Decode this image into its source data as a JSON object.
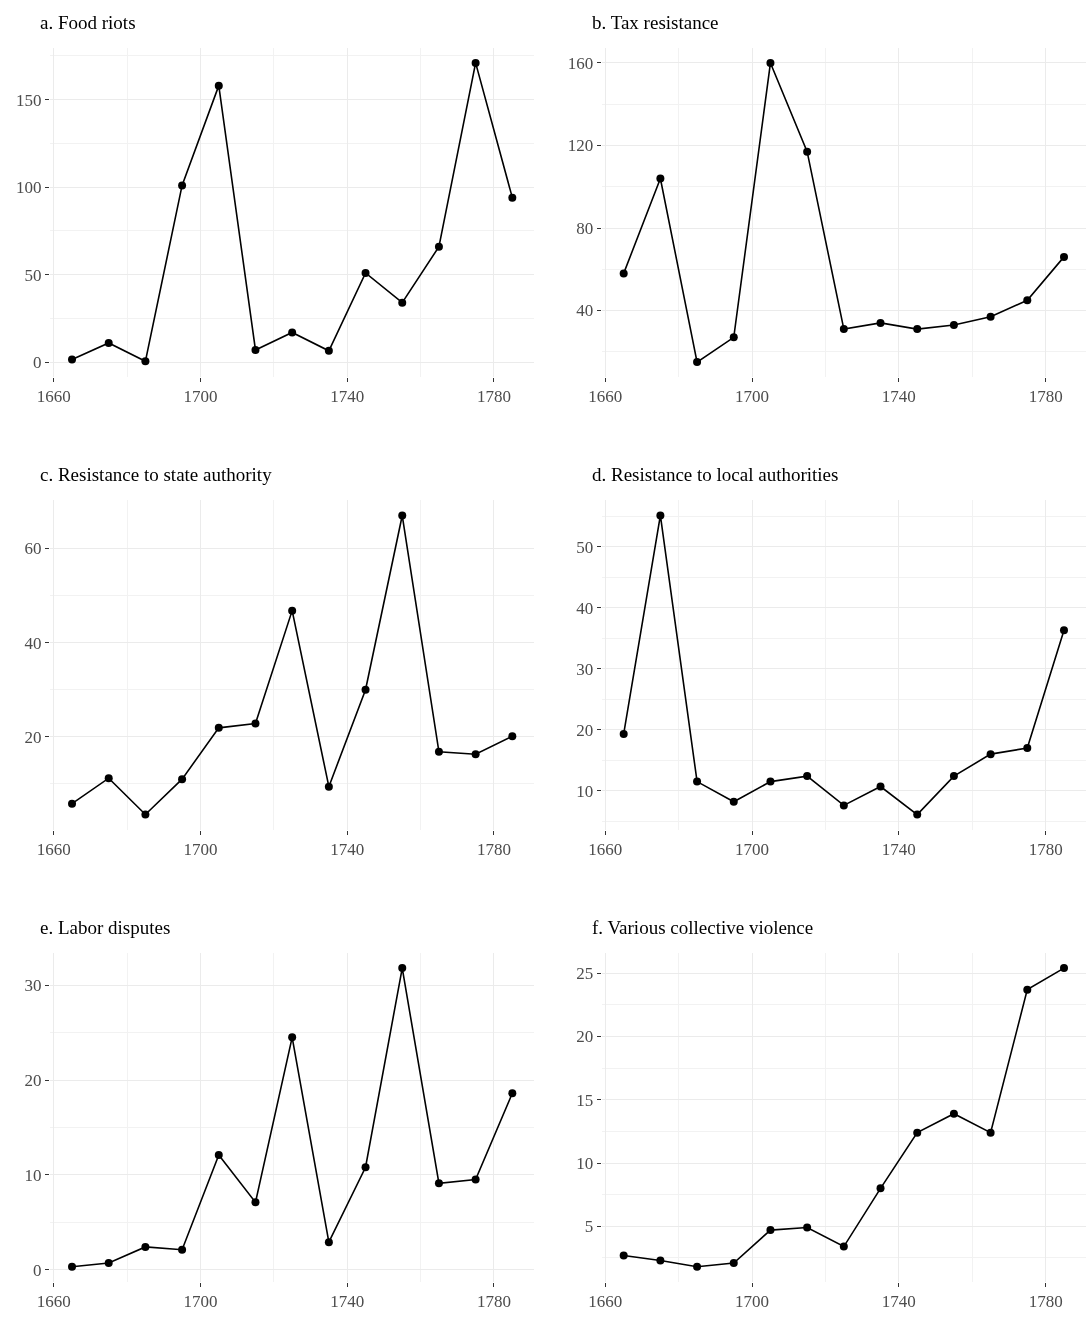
{
  "chart_data": [
    {
      "type": "line",
      "title": "a. Food riots",
      "x": [
        1665,
        1675,
        1685,
        1695,
        1705,
        1715,
        1725,
        1735,
        1745,
        1755,
        1765,
        1775,
        1785
      ],
      "values": [
        1.5,
        11,
        0.5,
        101,
        158,
        7,
        17,
        6.5,
        51,
        34,
        66,
        171,
        94
      ],
      "color": "#000000",
      "xlim": [
        1659,
        1791
      ],
      "xticks": [
        1660,
        1700,
        1740,
        1780
      ],
      "ylim": [
        -8.5,
        179.5
      ],
      "yticks": [
        0,
        50,
        100,
        150
      ],
      "grid": true,
      "marker": "circle",
      "line_style": "solid"
    },
    {
      "type": "line",
      "title": "b. Tax resistance",
      "x": [
        1665,
        1675,
        1685,
        1695,
        1705,
        1715,
        1725,
        1735,
        1745,
        1755,
        1765,
        1775,
        1785
      ],
      "values": [
        58,
        104,
        15,
        27,
        160,
        117,
        31,
        34,
        31,
        33,
        37,
        45,
        66
      ],
      "color": "#000000",
      "xlim": [
        1659,
        1791
      ],
      "xticks": [
        1660,
        1700,
        1740,
        1780
      ],
      "ylim": [
        7.75,
        167.25
      ],
      "yticks": [
        40,
        80,
        120,
        160
      ],
      "grid": true,
      "marker": "circle",
      "line_style": "solid"
    },
    {
      "type": "line",
      "title": "c. Resistance to state authority",
      "x": [
        1665,
        1675,
        1685,
        1695,
        1705,
        1715,
        1725,
        1735,
        1745,
        1755,
        1765,
        1775,
        1785
      ],
      "values": [
        5.8,
        11.2,
        3.5,
        11,
        21.9,
        22.8,
        46.8,
        9.4,
        30,
        67,
        16.8,
        16.3,
        20.1
      ],
      "color": "#000000",
      "xlim": [
        1659,
        1791
      ],
      "xticks": [
        1660,
        1700,
        1740,
        1780
      ],
      "ylim": [
        0.3,
        70.2
      ],
      "yticks": [
        20,
        40,
        60
      ],
      "grid": true,
      "marker": "circle",
      "line_style": "solid"
    },
    {
      "type": "line",
      "title": "d. Resistance to local authorities",
      "x": [
        1665,
        1675,
        1685,
        1695,
        1705,
        1715,
        1725,
        1735,
        1745,
        1755,
        1765,
        1775,
        1785
      ],
      "values": [
        19.3,
        55.1,
        11.5,
        8.2,
        11.5,
        12.4,
        7.6,
        10.7,
        6.1,
        12.4,
        16,
        17,
        36.3
      ],
      "color": "#000000",
      "xlim": [
        1659,
        1791
      ],
      "xticks": [
        1660,
        1700,
        1740,
        1780
      ],
      "ylim": [
        3.65,
        57.55
      ],
      "yticks": [
        10,
        20,
        30,
        40,
        50
      ],
      "grid": true,
      "marker": "circle",
      "line_style": "solid"
    },
    {
      "type": "line",
      "title": "e. Labor disputes",
      "x": [
        1665,
        1675,
        1685,
        1695,
        1705,
        1715,
        1725,
        1735,
        1745,
        1755,
        1765,
        1775,
        1785
      ],
      "values": [
        0.3,
        0.7,
        2.4,
        2.1,
        12.1,
        7.1,
        24.5,
        2.9,
        10.8,
        31.8,
        9.1,
        9.5,
        18.6
      ],
      "color": "#000000",
      "xlim": [
        1659,
        1791
      ],
      "xticks": [
        1660,
        1700,
        1740,
        1780
      ],
      "ylim": [
        -1.3,
        33.4
      ],
      "yticks": [
        0,
        10,
        20,
        30
      ],
      "grid": true,
      "marker": "circle",
      "line_style": "solid"
    },
    {
      "type": "line",
      "title": "f. Various collective violence",
      "x": [
        1665,
        1675,
        1685,
        1695,
        1705,
        1715,
        1725,
        1735,
        1745,
        1755,
        1765,
        1775,
        1785
      ],
      "values": [
        2.7,
        2.3,
        1.8,
        2.1,
        4.7,
        4.9,
        3.4,
        8.0,
        12.4,
        13.9,
        12.4,
        23.7,
        25.4
      ],
      "color": "#000000",
      "xlim": [
        1659,
        1791
      ],
      "xticks": [
        1660,
        1700,
        1740,
        1780
      ],
      "ylim": [
        0.6,
        26.6
      ],
      "yticks": [
        5,
        10,
        15,
        20,
        25
      ],
      "grid": true,
      "marker": "circle",
      "line_style": "solid"
    }
  ]
}
